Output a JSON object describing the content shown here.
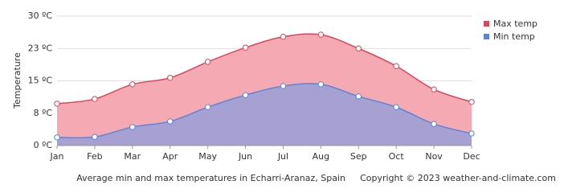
{
  "chart_data": {
    "type": "area",
    "y_label": "Temperature",
    "caption": "Average min and max temperatures in Echarri-Aranaz, Spain",
    "copyright": "Copyright © 2023  weather-and-climate.com",
    "categories": [
      "Jan",
      "Feb",
      "Mar",
      "Apr",
      "May",
      "Jun",
      "Jul",
      "Aug",
      "Sep",
      "Oct",
      "Nov",
      "Dec"
    ],
    "series": [
      {
        "name": "Max temp",
        "color": "#d9475a",
        "fill": "#f5aab3",
        "values": [
          9.7,
          10.8,
          14.2,
          15.7,
          19.4,
          22.7,
          25.2,
          25.7,
          22.5,
          18.4,
          13.0,
          10.1
        ]
      },
      {
        "name": "Min temp",
        "color": "#5b84db",
        "fill": "#a7a0d2",
        "values": [
          1.9,
          2.0,
          4.3,
          5.6,
          8.9,
          11.7,
          13.8,
          14.2,
          11.4,
          8.9,
          5.0,
          2.8
        ]
      }
    ],
    "ylim": [
      0,
      30
    ],
    "yticks": [
      {
        "value": 0,
        "label": "0 ºC"
      },
      {
        "value": 7.5,
        "label": "8 ºC"
      },
      {
        "value": 15,
        "label": "15 ºC"
      },
      {
        "value": 22.5,
        "label": "23 ºC"
      },
      {
        "value": 30,
        "label": "30 ºC"
      }
    ],
    "grid": true,
    "legend": "top-right"
  }
}
